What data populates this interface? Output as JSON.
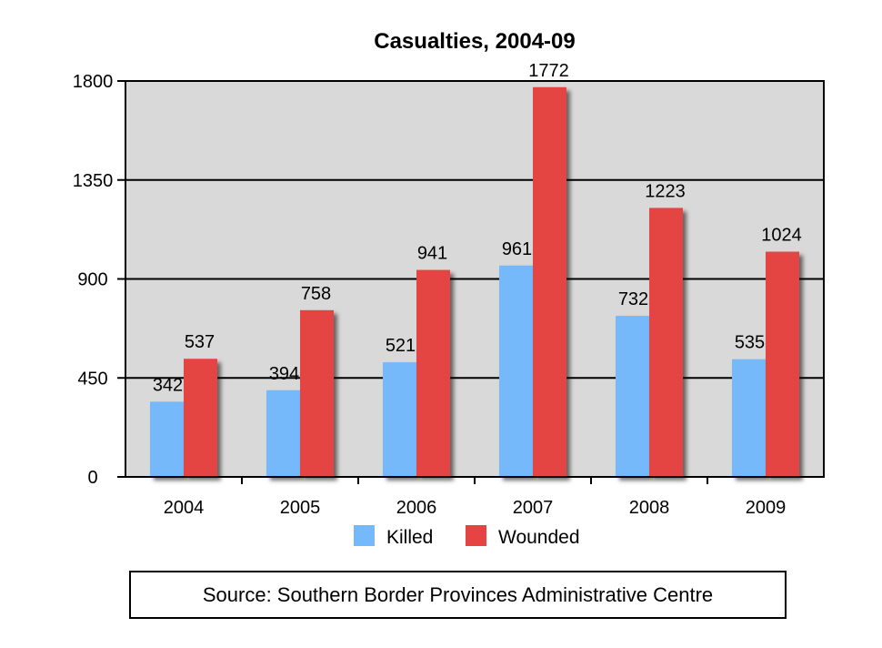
{
  "chart_data": {
    "type": "bar",
    "title": "Casualties, 2004-09",
    "categories": [
      "2004",
      "2005",
      "2006",
      "2007",
      "2008",
      "2009"
    ],
    "series": [
      {
        "name": "Killed",
        "color": "#74b9fb",
        "values": [
          342,
          394,
          521,
          961,
          732,
          535
        ]
      },
      {
        "name": "Wounded",
        "color": "#e54443",
        "values": [
          537,
          758,
          941,
          1772,
          1223,
          1024
        ]
      }
    ],
    "ylim": [
      0,
      1800
    ],
    "yticks": [
      0,
      450,
      900,
      1350,
      1800
    ],
    "xlabel": "",
    "ylabel": "",
    "grid": true,
    "legend": "bottom-center",
    "plot_background": "#d9d9d9"
  },
  "source": "Source: Southern Border Provinces Administrative Centre"
}
